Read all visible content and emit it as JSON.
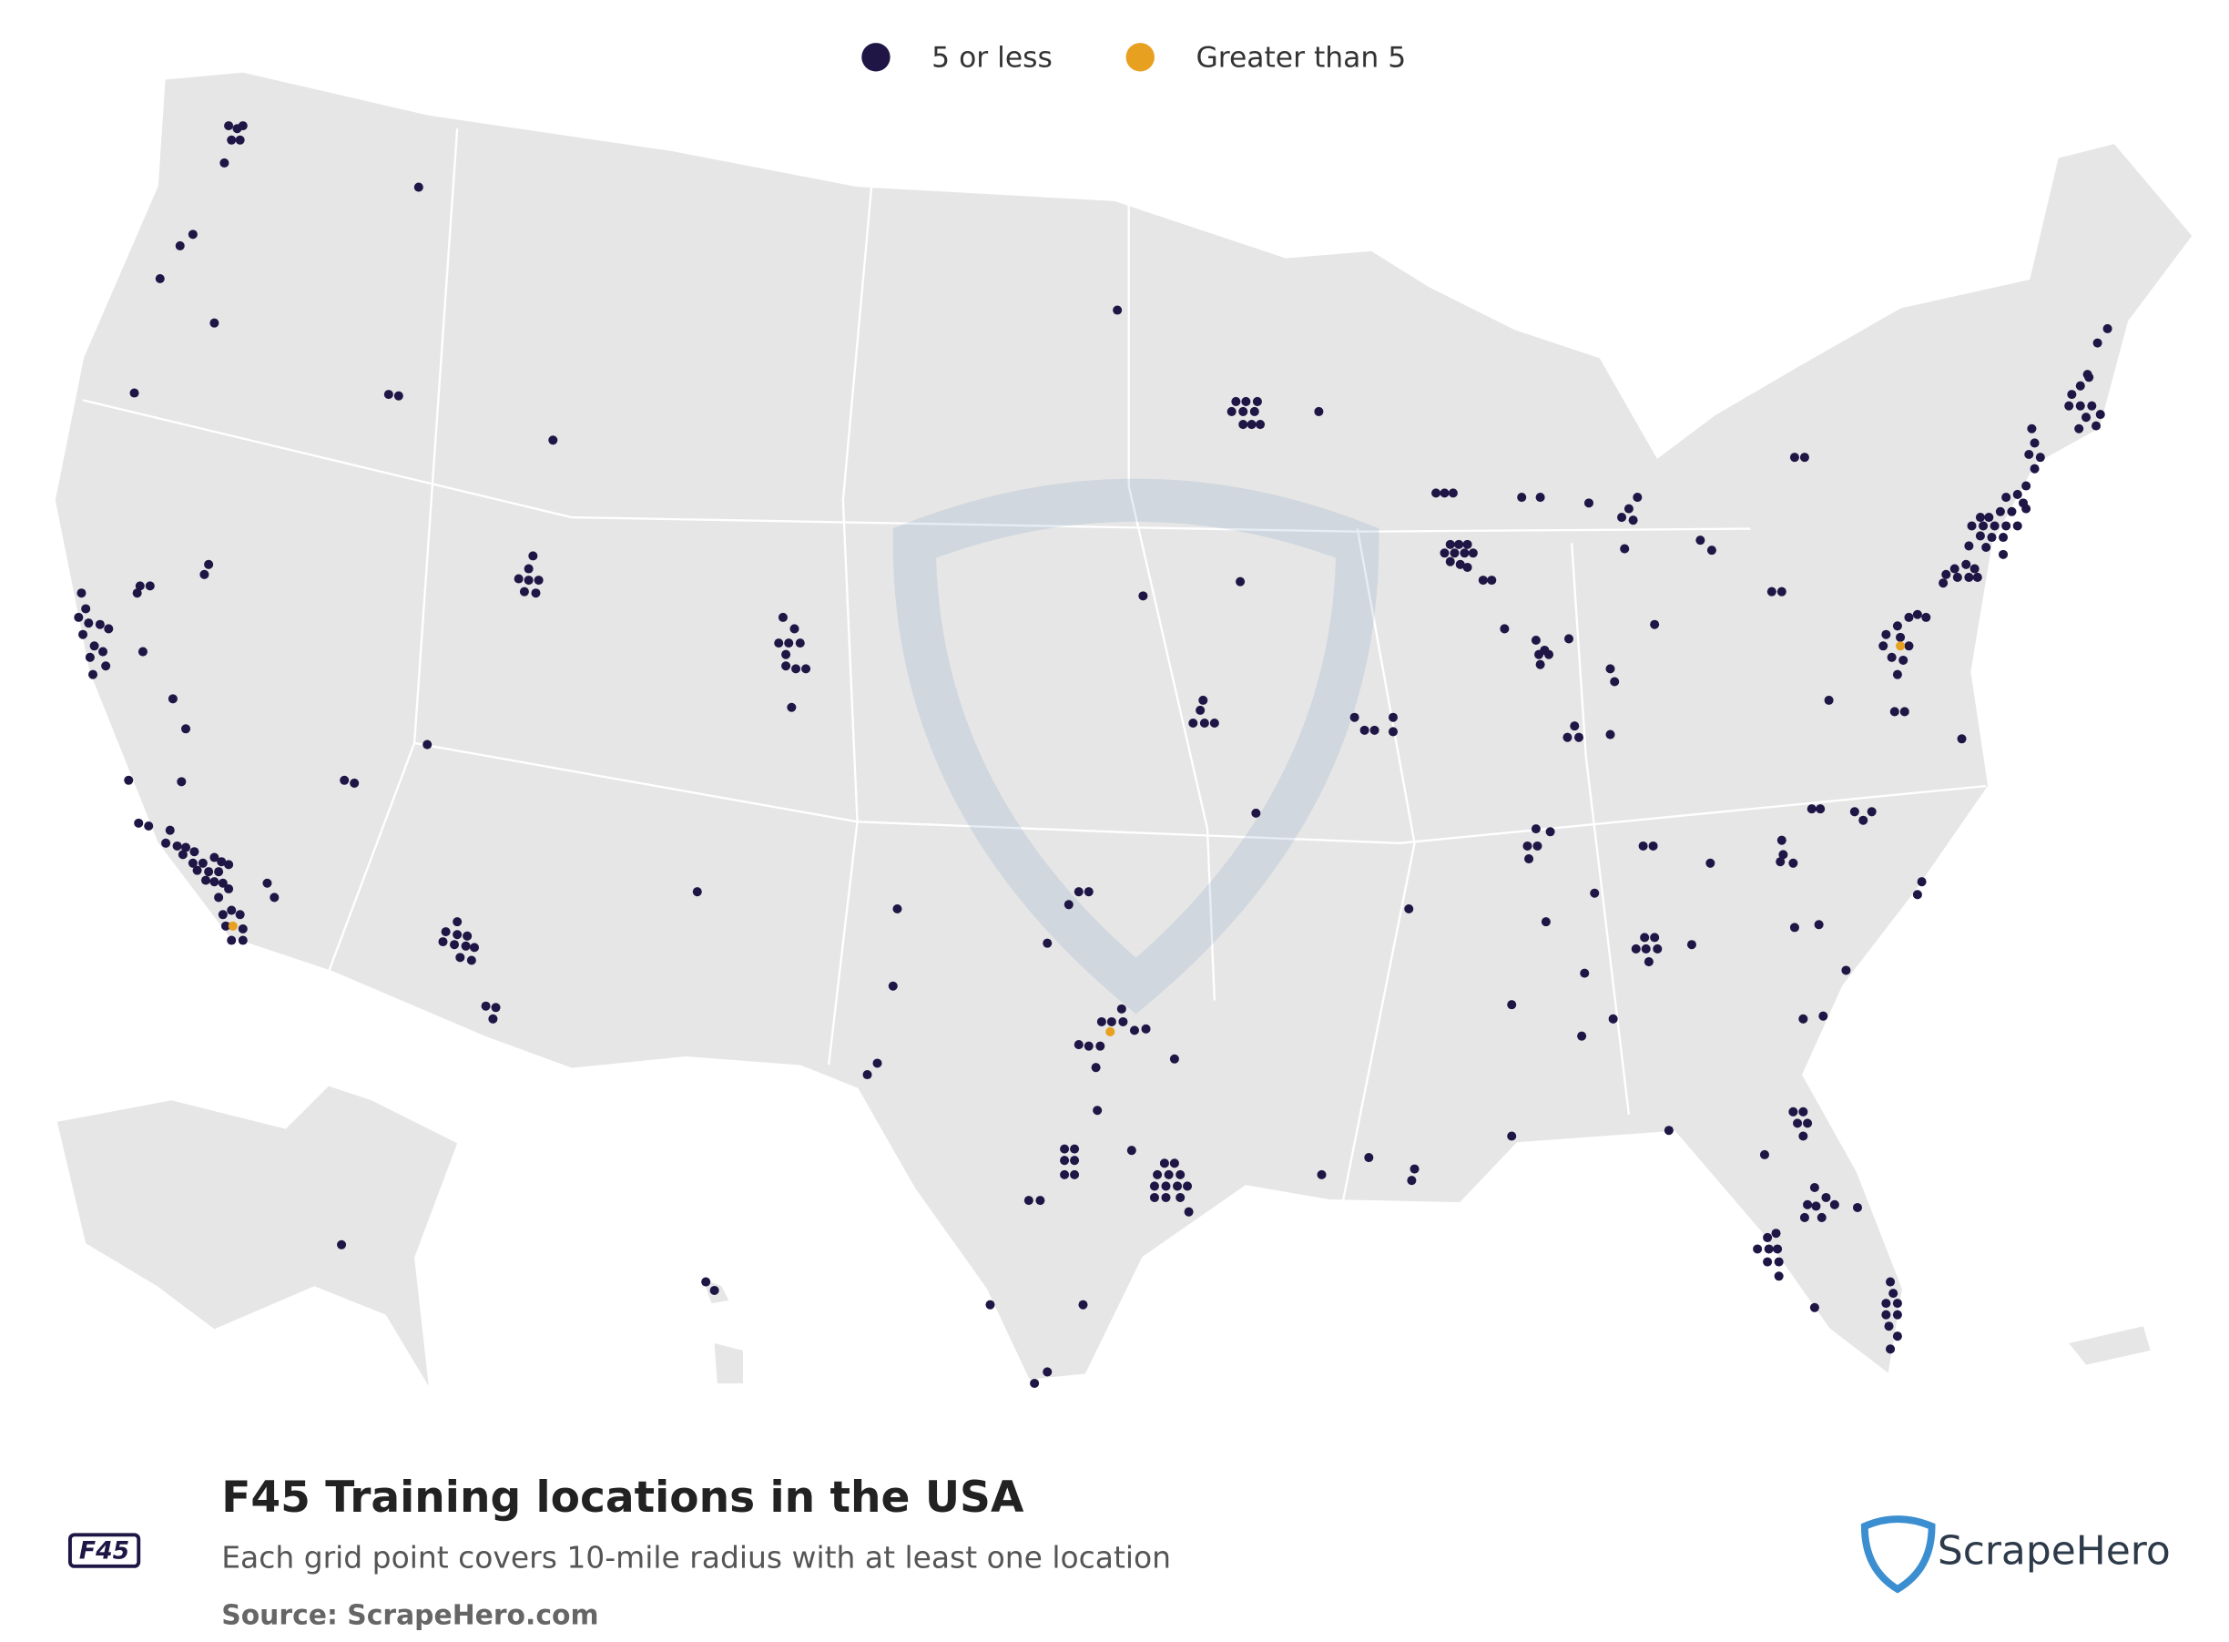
{
  "legend": {
    "items": [
      {
        "label": "5 or less",
        "color": "#1f1646"
      },
      {
        "label": "Greater than 5",
        "color": "#e8a020"
      }
    ]
  },
  "footer": {
    "title": "F45 Training locations in the USA",
    "subtitle": "Each grid point covers 10-mile radius with at least one location",
    "source": "Source: ScrapeHero.com",
    "brand": "ScrapeHero",
    "logo": "F45"
  }
}
